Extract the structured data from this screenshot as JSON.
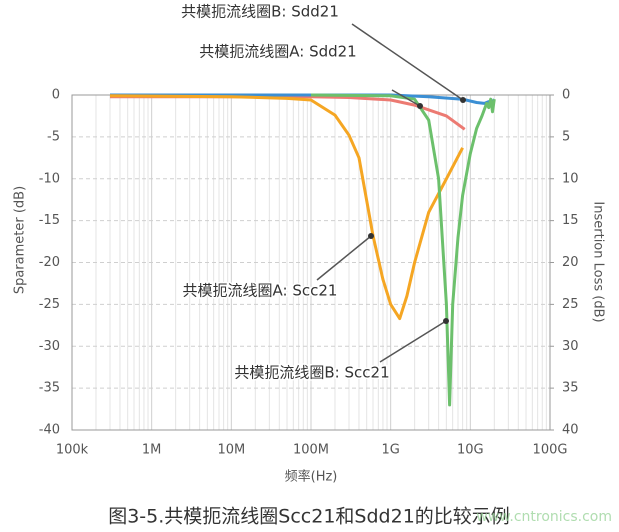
{
  "chart_data": {
    "type": "line",
    "xlabel": "频率(Hz)",
    "ylabel": "Sparameter (dB)",
    "y2label": "Insertion Loss (dB)",
    "xscale": "log",
    "grid": true,
    "xlim": [
      100000,
      100000000000
    ],
    "xticks": [
      {
        "value": 100000,
        "label": "100k"
      },
      {
        "value": 1000000,
        "label": "1M"
      },
      {
        "value": 10000000,
        "label": "10M"
      },
      {
        "value": 100000000,
        "label": "100M"
      },
      {
        "value": 1000000000,
        "label": "1G"
      },
      {
        "value": 10000000000,
        "label": "10G"
      },
      {
        "value": 100000000000,
        "label": "100G"
      }
    ],
    "ylim": [
      -40,
      0
    ],
    "yticks": [
      -40,
      -35,
      -30,
      -25,
      -20,
      -15,
      -10,
      -5,
      0
    ],
    "y2lim": [
      40,
      0
    ],
    "y2ticks": [
      40,
      35,
      30,
      25,
      20,
      15,
      10,
      5,
      0
    ],
    "series": [
      {
        "name": "共模扼流线圈A: Sdd21",
        "color": "#ec7a72",
        "x": [
          300000,
          10000000,
          100000000,
          300000000,
          1000000000,
          2000000000,
          5000000000,
          8500000000
        ],
        "values": [
          -0.2,
          -0.2,
          -0.2,
          -0.3,
          -0.6,
          -1.2,
          -2.5,
          -4.1
        ]
      },
      {
        "name": "共模扼流线圈B: Sdd21",
        "color": "#3b8fd4",
        "x": [
          300000,
          100000000,
          1000000000,
          3000000000,
          8000000000,
          12000000000,
          15000000000,
          17000000000,
          18000000000,
          20000000000
        ],
        "values": [
          0,
          0,
          0,
          -0.2,
          -0.5,
          -0.9,
          -1,
          -0.8,
          -1.2,
          -0.5
        ]
      },
      {
        "name": "共模扼流线圈A: Scc21",
        "color": "#f5a623",
        "x": [
          300000,
          10000000,
          50000000,
          100000000,
          200000000,
          300000000,
          400000000,
          600000000,
          800000000,
          1000000000,
          1300000000,
          1600000000,
          2000000000,
          3000000000,
          5000000000,
          8000000000
        ],
        "values": [
          -0.1,
          -0.2,
          -0.4,
          -0.6,
          -2.4,
          -4.8,
          -7.5,
          -16.8,
          -22,
          -25,
          -26.7,
          -24,
          -20,
          -14,
          -10,
          -6.3
        ]
      },
      {
        "name": "共模扼流线圈B: Scc21",
        "color": "#6cc06c",
        "x": [
          100000000,
          1000000000,
          2000000000,
          3000000000,
          4000000000,
          5000000000,
          5500000000,
          6000000000,
          7000000000,
          8000000000,
          10000000000,
          12000000000,
          14000000000,
          16000000000,
          17000000000,
          18000000000,
          19000000000,
          20000000000
        ],
        "values": [
          0,
          -0.1,
          -0.5,
          -3,
          -10,
          -25,
          -37,
          -25,
          -17,
          -12,
          -7,
          -4,
          -2.5,
          -1,
          -1.5,
          -0.5,
          -2,
          -0.5
        ]
      }
    ],
    "caption": "图3-5.共模扼流线圈Scc21和Sdd21的比较示例",
    "watermark": "www.cntronics.com"
  }
}
